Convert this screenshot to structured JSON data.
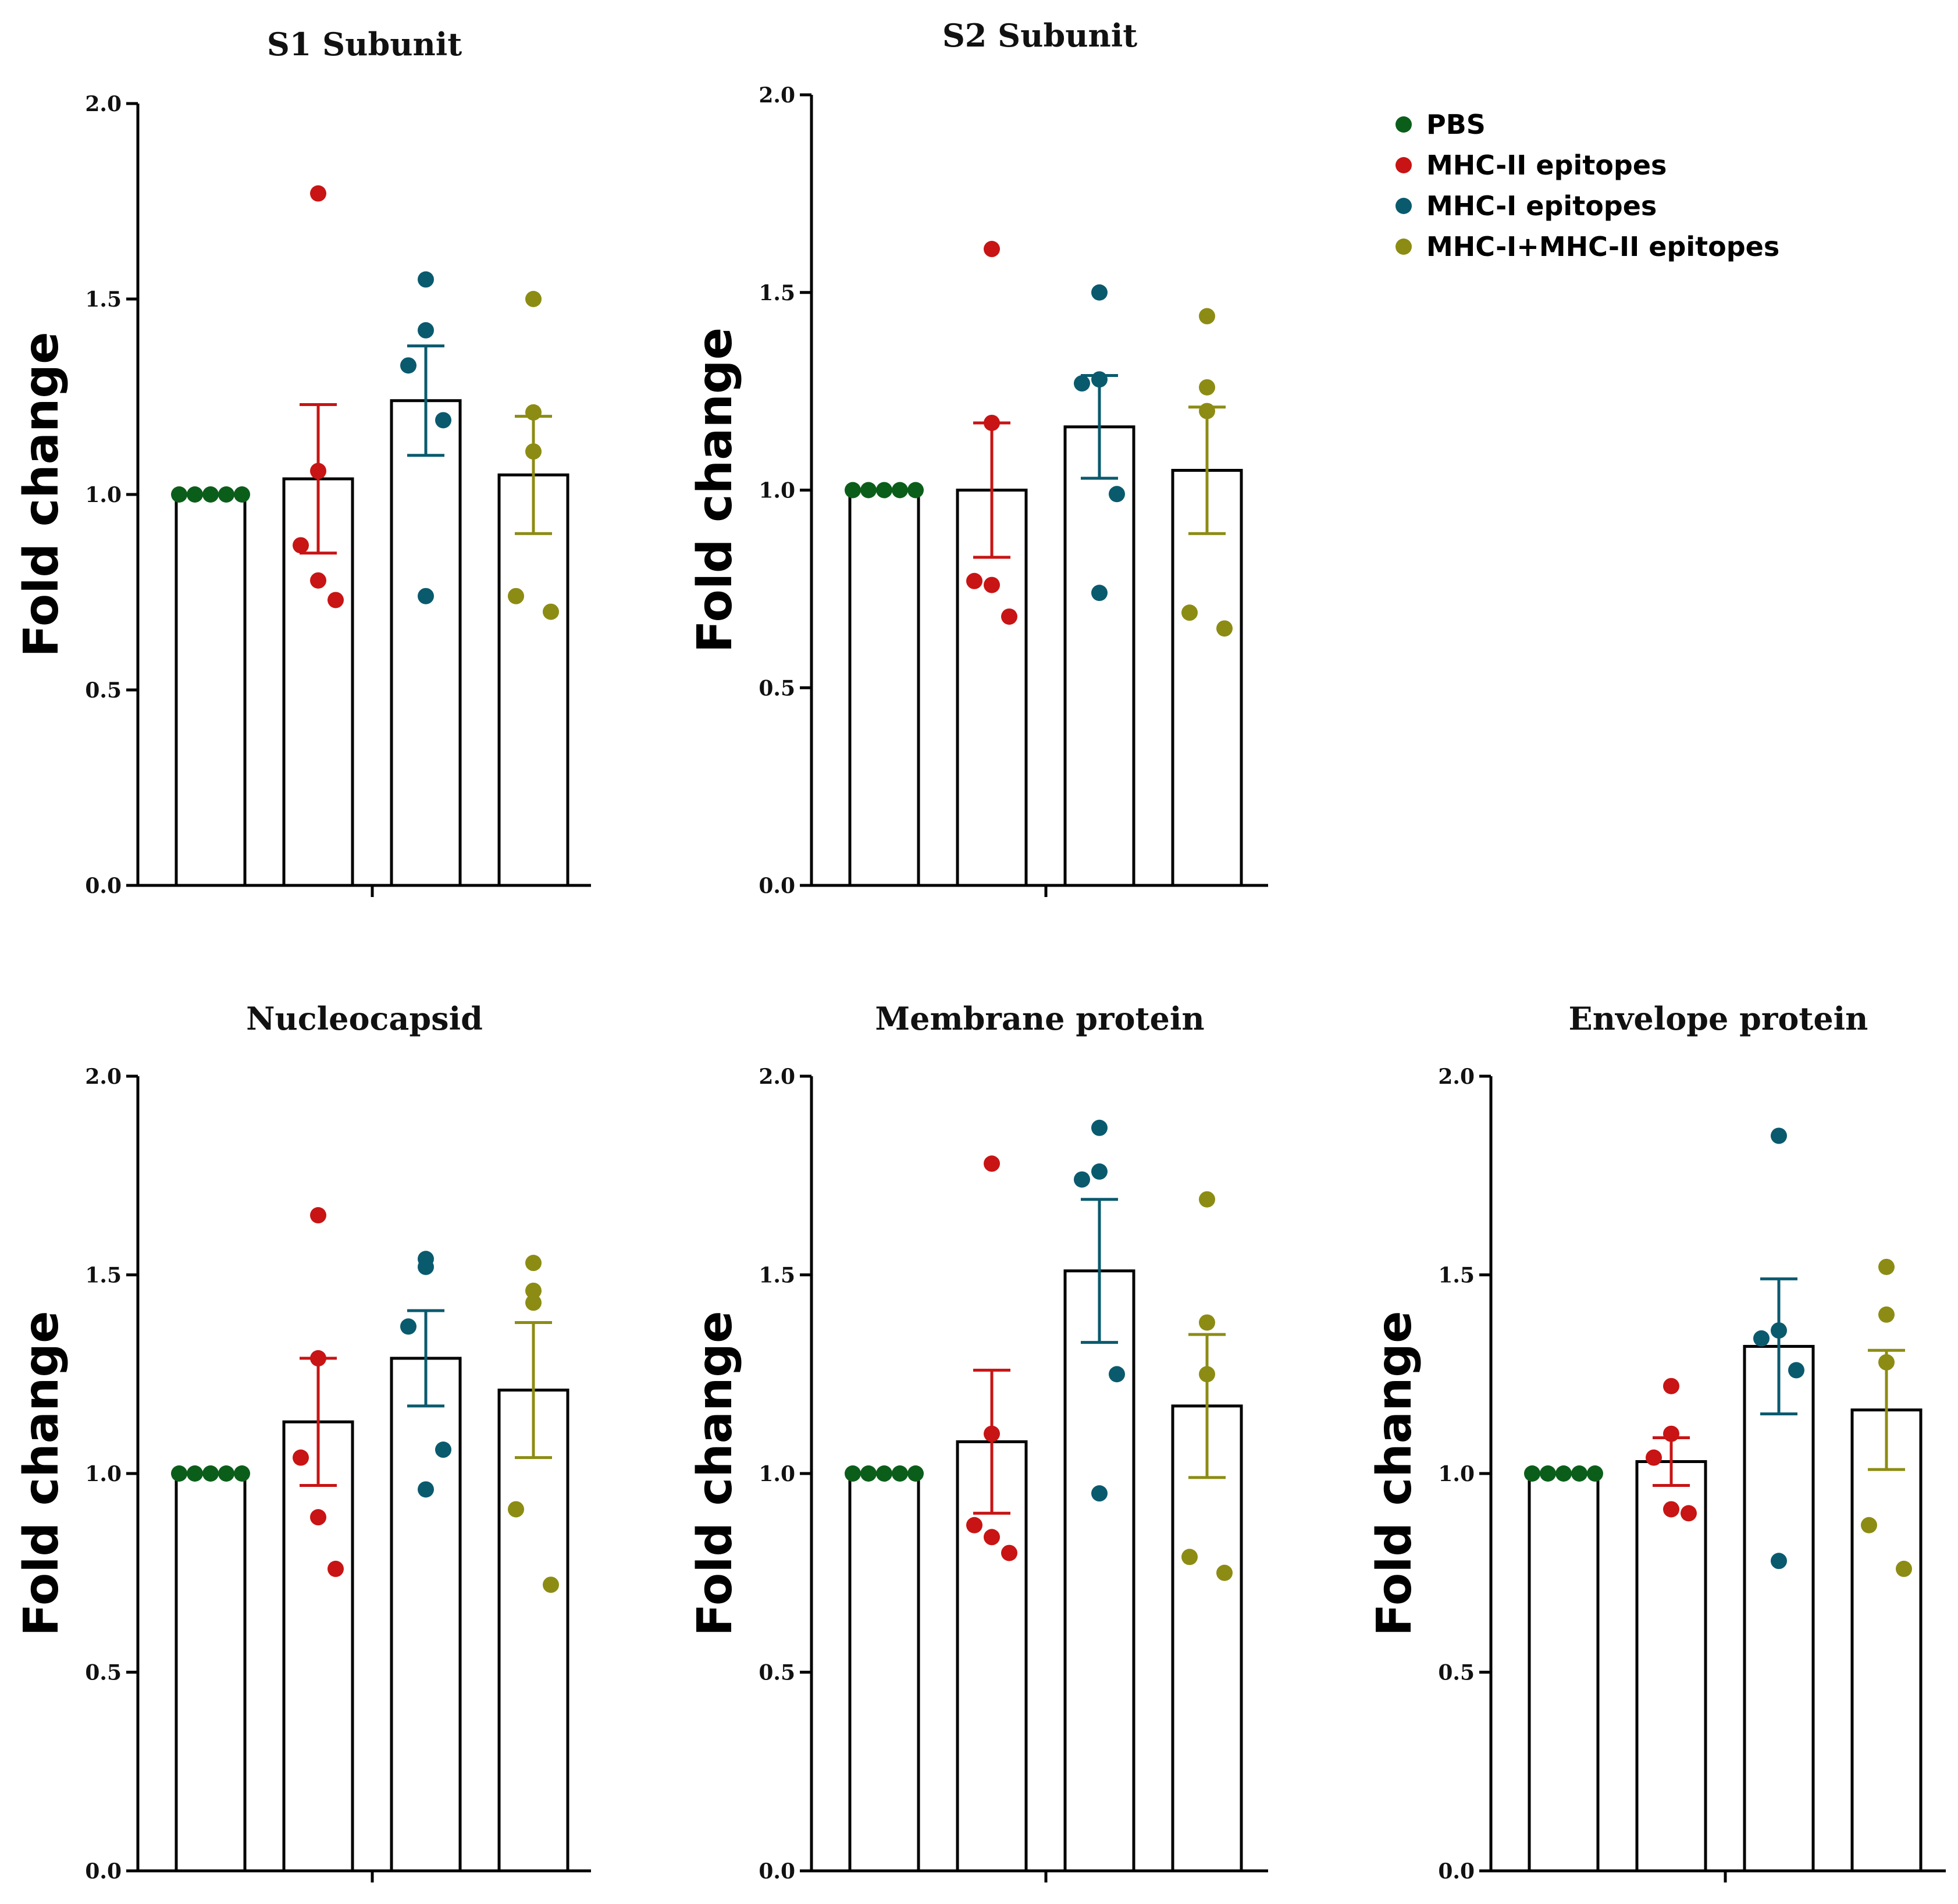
{
  "legend": [
    {
      "label": "PBS",
      "color": "#0b5e1a"
    },
    {
      "label": "MHC-II epitopes",
      "color": "#c81414"
    },
    {
      "label": "MHC-I epitopes",
      "color": "#0a5a6e"
    },
    {
      "label": "MHC-I+MHC-II epitopes",
      "color": "#8c8c14"
    }
  ],
  "chart_data": [
    {
      "type": "bar",
      "title": "S1 Subunit",
      "ylabel": "Fold change",
      "ylim": [
        0,
        2.0
      ],
      "yticks": [
        "0.0",
        "0.5",
        "1.0",
        "1.5",
        "2.0"
      ],
      "categories": [
        "PBS",
        "MHC-II epitopes",
        "MHC-I epitopes",
        "MHC-I+MHC-II epitopes"
      ],
      "values": [
        1.0,
        1.04,
        1.24,
        1.05
      ],
      "sem": [
        0.0,
        0.19,
        0.14,
        0.15
      ],
      "points": [
        [
          1.0,
          1.0,
          1.0,
          1.0,
          1.0
        ],
        [
          1.77,
          1.06,
          0.87,
          0.78,
          0.73
        ],
        [
          1.55,
          1.42,
          1.33,
          1.19,
          0.74
        ],
        [
          1.5,
          1.21,
          1.11,
          0.74,
          0.7
        ]
      ]
    },
    {
      "type": "bar",
      "title": "S2 Subunit",
      "ylabel": "Fold change",
      "ylim": [
        0,
        2.0
      ],
      "yticks": [
        "0.0",
        "0.5",
        "1.0",
        "1.5",
        "2.0"
      ],
      "categories": [
        "PBS",
        "MHC-II epitopes",
        "MHC-I epitopes",
        "MHC-I+MHC-II epitopes"
      ],
      "values": [
        1.0,
        1.0,
        1.16,
        1.05
      ],
      "sem": [
        0.0,
        0.17,
        0.13,
        0.16
      ],
      "points": [
        [
          1.0,
          1.0,
          1.0,
          1.0,
          1.0
        ],
        [
          1.61,
          1.17,
          0.77,
          0.76,
          0.68
        ],
        [
          1.5,
          1.28,
          1.27,
          0.99,
          0.74
        ],
        [
          1.44,
          1.26,
          1.2,
          0.69,
          0.65
        ]
      ]
    },
    {
      "type": "bar",
      "title": "Nucleocapsid",
      "ylabel": "Fold change",
      "ylim": [
        0,
        2.0
      ],
      "yticks": [
        "0.0",
        "0.5",
        "1.0",
        "1.5",
        "2.0"
      ],
      "categories": [
        "PBS",
        "MHC-II epitopes",
        "MHC-I epitopes",
        "MHC-I+MHC-II epitopes"
      ],
      "values": [
        1.0,
        1.13,
        1.29,
        1.21
      ],
      "sem": [
        0.0,
        0.16,
        0.12,
        0.17
      ],
      "points": [
        [
          1.0,
          1.0,
          1.0,
          1.0,
          1.0
        ],
        [
          1.65,
          1.29,
          1.04,
          0.89,
          0.76
        ],
        [
          1.54,
          1.52,
          1.37,
          1.06,
          0.96
        ],
        [
          1.53,
          1.46,
          1.43,
          0.91,
          0.72
        ]
      ]
    },
    {
      "type": "bar",
      "title": "Membrane protein",
      "ylabel": "Fold change",
      "ylim": [
        0,
        2.0
      ],
      "yticks": [
        "0.0",
        "0.5",
        "1.0",
        "1.5",
        "2.0"
      ],
      "categories": [
        "PBS",
        "MHC-II epitopes",
        "MHC-I epitopes",
        "MHC-I+MHC-II epitopes"
      ],
      "values": [
        1.0,
        1.08,
        1.51,
        1.17
      ],
      "sem": [
        0.0,
        0.18,
        0.18,
        0.18
      ],
      "points": [
        [
          1.0,
          1.0,
          1.0,
          1.0,
          1.0
        ],
        [
          1.78,
          1.1,
          0.87,
          0.84,
          0.8
        ],
        [
          1.87,
          1.76,
          1.74,
          1.25,
          0.95
        ],
        [
          1.69,
          1.38,
          1.25,
          0.79,
          0.75
        ]
      ]
    },
    {
      "type": "bar",
      "title": "Envelope protein",
      "ylabel": "Fold change",
      "ylim": [
        0,
        2.0
      ],
      "yticks": [
        "0.0",
        "0.5",
        "1.0",
        "1.5",
        "2.0"
      ],
      "categories": [
        "PBS",
        "MHC-II epitopes",
        "MHC-I epitopes",
        "MHC-I+MHC-II epitopes"
      ],
      "values": [
        1.0,
        1.03,
        1.32,
        1.16
      ],
      "sem": [
        0.0,
        0.06,
        0.17,
        0.15
      ],
      "points": [
        [
          1.0,
          1.0,
          1.0,
          1.0,
          1.0
        ],
        [
          1.22,
          1.1,
          1.04,
          0.91,
          0.9
        ],
        [
          1.85,
          1.36,
          1.34,
          1.26,
          0.78
        ],
        [
          1.52,
          1.4,
          1.28,
          0.87,
          0.76
        ]
      ]
    }
  ]
}
